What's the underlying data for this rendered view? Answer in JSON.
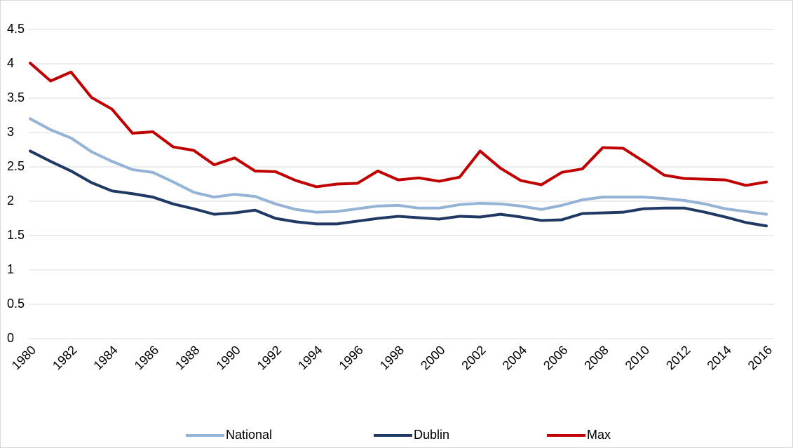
{
  "chart_data": {
    "type": "line",
    "categories": [
      "1980",
      null,
      "1982",
      null,
      "1984",
      null,
      "1986",
      null,
      "1988",
      null,
      "1990",
      null,
      "1992",
      null,
      "1994",
      null,
      "1996",
      null,
      "1998",
      null,
      "2000",
      null,
      "2002",
      null,
      "2004",
      null,
      "2006",
      null,
      "2008",
      null,
      "2010",
      null,
      "2012",
      null,
      "2014",
      null,
      "2016"
    ],
    "series": [
      {
        "name": "National",
        "color": "#95b3d7",
        "values": [
          3.2,
          3.04,
          2.92,
          2.72,
          2.58,
          2.46,
          2.42,
          2.28,
          2.13,
          2.06,
          2.1,
          2.07,
          1.96,
          1.88,
          1.84,
          1.85,
          1.89,
          1.93,
          1.94,
          1.9,
          1.9,
          1.95,
          1.97,
          1.96,
          1.93,
          1.88,
          1.94,
          2.02,
          2.06,
          2.06,
          2.06,
          2.04,
          2.01,
          1.96,
          1.89,
          1.85,
          1.81
        ]
      },
      {
        "name": "Dublin",
        "color": "#1f3864",
        "values": [
          2.73,
          2.58,
          2.44,
          2.27,
          2.15,
          2.11,
          2.06,
          1.96,
          1.89,
          1.81,
          1.83,
          1.87,
          1.75,
          1.7,
          1.67,
          1.67,
          1.71,
          1.75,
          1.78,
          1.76,
          1.74,
          1.78,
          1.77,
          1.81,
          1.77,
          1.72,
          1.73,
          1.82,
          1.83,
          1.84,
          1.89,
          1.9,
          1.9,
          1.84,
          1.77,
          1.69,
          1.64
        ]
      },
      {
        "name": "Max",
        "color": "#c00000",
        "values": [
          4.01,
          3.75,
          3.88,
          3.51,
          3.34,
          2.99,
          3.01,
          2.79,
          2.74,
          2.53,
          2.63,
          2.44,
          2.43,
          2.3,
          2.21,
          2.25,
          2.26,
          2.44,
          2.31,
          2.34,
          2.29,
          2.35,
          2.73,
          2.48,
          2.3,
          2.24,
          2.42,
          2.47,
          2.78,
          2.77,
          2.58,
          2.38,
          2.33,
          2.32,
          2.31,
          2.23,
          2.28
        ]
      }
    ],
    "ylim": [
      0,
      4.5
    ],
    "yticks": [
      0,
      0.5,
      1,
      1.5,
      2,
      2.5,
      3,
      3.5,
      4,
      4.5
    ],
    "grid": true,
    "legend": "bottom"
  }
}
